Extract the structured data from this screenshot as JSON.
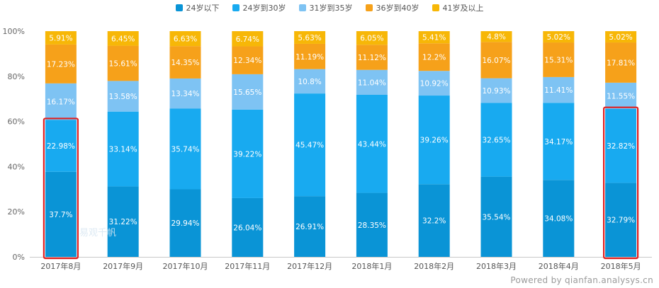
{
  "chart_data": {
    "type": "bar",
    "stacked": true,
    "categories": [
      "2017年8月",
      "2017年9月",
      "2017年10月",
      "2017年11月",
      "2017年12月",
      "2018年1月",
      "2018年2月",
      "2018年3月",
      "2018年4月",
      "2018年5月"
    ],
    "series": [
      {
        "name": "24岁以下",
        "color": "#0a94d6",
        "values": [
          37.7,
          31.22,
          29.94,
          26.04,
          26.91,
          28.35,
          32.2,
          35.54,
          34.08,
          32.79
        ]
      },
      {
        "name": "24岁到30岁",
        "color": "#18aaf0",
        "values": [
          22.98,
          33.14,
          35.74,
          39.22,
          45.47,
          43.44,
          39.26,
          32.65,
          34.17,
          32.82
        ]
      },
      {
        "name": "31岁到35岁",
        "color": "#7ec3f3",
        "values": [
          16.17,
          13.58,
          13.34,
          15.65,
          10.8,
          11.04,
          10.92,
          10.93,
          11.41,
          11.55
        ]
      },
      {
        "name": "36岁到40岁",
        "color": "#f6a11a",
        "values": [
          17.23,
          15.61,
          14.35,
          12.34,
          11.19,
          11.12,
          12.2,
          16.07,
          15.31,
          17.81
        ]
      },
      {
        "name": "41岁及以上",
        "color": "#f7b707",
        "values": [
          5.91,
          6.45,
          6.63,
          6.74,
          5.63,
          6.05,
          5.41,
          4.8,
          5.02,
          5.02
        ]
      }
    ],
    "ylim": [
      0,
      100
    ],
    "yticks": [
      "0%",
      "20%",
      "40%",
      "60%",
      "80%",
      "100%"
    ],
    "highlight": [
      {
        "category_index": 0,
        "series_indices": [
          0,
          1
        ],
        "color": "#e02020"
      },
      {
        "category_index": 9,
        "series_indices": [
          0,
          1
        ],
        "color": "#e02020"
      }
    ],
    "legend_position": "top-center",
    "grid": false
  },
  "watermark_text": "Powered by qianfan.analysys.cn",
  "watermark_logo_text": "易观千帆"
}
